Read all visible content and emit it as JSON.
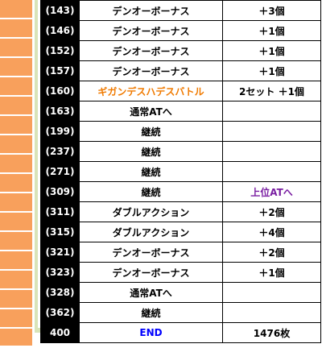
{
  "rows": [
    {
      "game": "(143)",
      "event": "デンオーボーナス",
      "result": "＋3個",
      "event_color": "",
      "result_color": ""
    },
    {
      "game": "(146)",
      "event": "デンオーボーナス",
      "result": "＋1個",
      "event_color": "",
      "result_color": ""
    },
    {
      "game": "(152)",
      "event": "デンオーボーナス",
      "result": "＋1個",
      "event_color": "",
      "result_color": ""
    },
    {
      "game": "(157)",
      "event": "デンオーボーナス",
      "result": "＋1個",
      "event_color": "",
      "result_color": ""
    },
    {
      "game": "(160)",
      "event": "ギガンデスハデスバトル",
      "result": "2セット ＋1個",
      "event_color": "#f07a00",
      "result_color": ""
    },
    {
      "game": "(163)",
      "event": "通常ATへ",
      "result": "",
      "event_color": "",
      "result_color": ""
    },
    {
      "game": "(199)",
      "event": "継続",
      "result": "",
      "event_color": "",
      "result_color": ""
    },
    {
      "game": "(237)",
      "event": "継続",
      "result": "",
      "event_color": "",
      "result_color": ""
    },
    {
      "game": "(271)",
      "event": "継続",
      "result": "",
      "event_color": "",
      "result_color": ""
    },
    {
      "game": "(309)",
      "event": "継続",
      "result": "上位ATへ",
      "event_color": "",
      "result_color": "#7a1fa2"
    },
    {
      "game": "(311)",
      "event": "ダブルアクション",
      "result": "＋2個",
      "event_color": "",
      "result_color": ""
    },
    {
      "game": "(315)",
      "event": "ダブルアクション",
      "result": "＋4個",
      "event_color": "",
      "result_color": ""
    },
    {
      "game": "(321)",
      "event": "デンオーボーナス",
      "result": "＋2個",
      "event_color": "",
      "result_color": ""
    },
    {
      "game": "(323)",
      "event": "デンオーボーナス",
      "result": "＋1個",
      "event_color": "",
      "result_color": ""
    },
    {
      "game": "(328)",
      "event": "通常ATへ",
      "result": "",
      "event_color": "",
      "result_color": ""
    },
    {
      "game": "(362)",
      "event": "継続",
      "result": "",
      "event_color": "",
      "result_color": ""
    },
    {
      "game": "400",
      "event": "END",
      "result": "1476枚",
      "event_color": "#0000ff",
      "result_color": ""
    }
  ]
}
